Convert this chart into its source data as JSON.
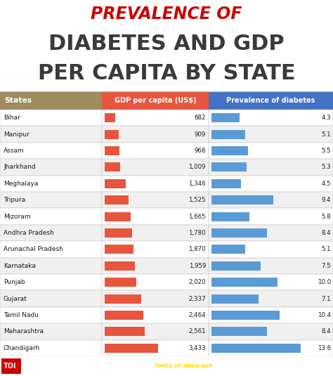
{
  "title_line1": "PREVALENCE OF",
  "title_line2": "DIABETES AND GDP",
  "title_line3": "PER CAPITA BY STATE",
  "col_headers": [
    "States",
    "GDP per capita (US$)",
    "Prevalence of diabetes"
  ],
  "states": [
    "Bihar",
    "Manipur",
    "Assam",
    "Jharkhand",
    "Meghalaya",
    "Tripura",
    "Mizoram",
    "Andhra Pradesh",
    "Arunachal Pradesh",
    "Karnataka",
    "Punjab",
    "Gujarat",
    "Tamil Nadu",
    "Maharashtra",
    "Chandigarh"
  ],
  "gdp": [
    682,
    909,
    968,
    1009,
    1346,
    1525,
    1665,
    1780,
    1870,
    1959,
    2020,
    2337,
    2464,
    2561,
    3433
  ],
  "prevalence": [
    4.3,
    5.1,
    5.5,
    5.3,
    4.5,
    9.4,
    5.8,
    8.4,
    5.1,
    7.5,
    10.0,
    7.1,
    10.4,
    8.4,
    13.6
  ],
  "gdp_color": "#E8553E",
  "prev_color": "#5B9BD5",
  "header_states_bg": "#9E8B5E",
  "header_gdp_bg": "#E8553E",
  "header_prev_bg": "#4472C4",
  "header_text_color": "#FFFFFF",
  "row_bg_even": "#FFFFFF",
  "row_bg_odd": "#F0F0F0",
  "title_line1_color": "#CC0000",
  "title_line23_color": "#3A3A3A",
  "footer_bg": "#CC0000",
  "footer_text_color": "#FFFFFF",
  "footer_highlight": "#FFD700",
  "bg_color": "#FFFFFF",
  "border_color": "#BBBBBB",
  "text_color": "#1A1A1A",
  "gdp_max": 3433,
  "prev_max": 13.6,
  "fig_width": 4.74,
  "fig_height": 5.35,
  "dpi": 100
}
